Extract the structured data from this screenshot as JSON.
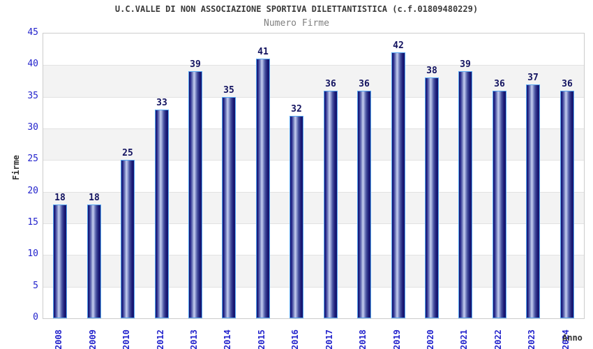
{
  "header": {
    "title": "U.C.VALLE DI NON ASSOCIAZIONE SPORTIVA DILETTANTISTICA (c.f.01809480229)",
    "subtitle": "Numero Firme"
  },
  "chart_data": {
    "type": "bar",
    "title": "U.C.VALLE DI NON ASSOCIAZIONE SPORTIVA DILETTANTISTICA (c.f.01809480229)",
    "subtitle": "Numero Firme",
    "categories": [
      "2008",
      "2009",
      "2010",
      "2012",
      "2013",
      "2014",
      "2015",
      "2016",
      "2017",
      "2018",
      "2019",
      "2020",
      "2021",
      "2022",
      "2023",
      "2024"
    ],
    "values": [
      18,
      18,
      25,
      33,
      39,
      35,
      41,
      32,
      36,
      36,
      42,
      38,
      39,
      36,
      37,
      36
    ],
    "xlabel": "Anno",
    "ylabel": "Firme",
    "ylim": [
      0,
      45
    ],
    "ytick_step": 5,
    "yticks": [
      0,
      5,
      10,
      15,
      20,
      25,
      30,
      35,
      40,
      45
    ],
    "grid": "alternating-horizontal-bands",
    "legend": "none",
    "colors": {
      "title": "#3a3a3a",
      "subtitle": "#808080",
      "tick_label": "#2323cc",
      "value_label": "#131360",
      "axis_title": "#333333",
      "bar_edge": "#57a7f2",
      "bar_dark": "#14146c",
      "bar_mid": "#8691c7",
      "bar_light": "#c6cff0",
      "band_gray": "#f3f3f3",
      "gridline": "#e2e2e2",
      "plot_border": "#cccccc",
      "background": "#ffffff"
    }
  }
}
